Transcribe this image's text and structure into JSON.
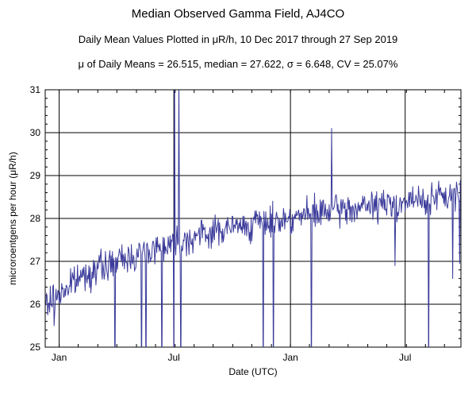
{
  "chart_data": {
    "type": "line",
    "title": "Median Observed Gamma Field, AJ4CO",
    "subtitle": "Daily Mean Values Plotted in μR/h, 10 Dec 2017 through 27 Sep 2019",
    "stats": "μ of Daily Means = 26.515,   median = 27.622,   σ = 6.648,   CV = 25.07%",
    "xlabel": "Date (UTC)",
    "ylabel": "microroentgens per hour (μR/h)",
    "ylim": [
      25,
      31
    ],
    "yticks": [
      25,
      26,
      27,
      28,
      29,
      30,
      31
    ],
    "xlim_days": [
      -22,
      634
    ],
    "xticks": [
      {
        "label": "Jan",
        "day": 0
      },
      {
        "label": "Jul",
        "day": 181
      },
      {
        "label": "Jan",
        "day": 365
      },
      {
        "label": "Jul",
        "day": 546
      }
    ],
    "grid": true,
    "series": [
      {
        "name": "Daily mean",
        "color": "#3b3b9b",
        "start_day": -21,
        "trend_anchors": [
          [
            -21,
            26.0
          ],
          [
            40,
            26.7
          ],
          [
            120,
            27.15
          ],
          [
            181,
            27.45
          ],
          [
            260,
            27.75
          ],
          [
            340,
            27.95
          ],
          [
            420,
            28.15
          ],
          [
            500,
            28.3
          ],
          [
            560,
            28.4
          ],
          [
            633,
            28.55
          ]
        ],
        "noise_amplitude": 0.27,
        "seed": 7,
        "spikes": [
          {
            "day": -18,
            "value": 25.75
          },
          {
            "day": -8,
            "value": 25.5
          },
          {
            "day": 88,
            "value": 24.0
          },
          {
            "day": 130,
            "value": 24.0
          },
          {
            "day": 137,
            "value": 24.0
          },
          {
            "day": 162,
            "value": 24.0
          },
          {
            "day": 181,
            "value": 24.0
          },
          {
            "day": 182,
            "value": 31.4
          },
          {
            "day": 189,
            "value": 31.4
          },
          {
            "day": 192,
            "value": 24.0
          },
          {
            "day": 322,
            "value": 24.0
          },
          {
            "day": 338,
            "value": 24.0
          },
          {
            "day": 398,
            "value": 24.0
          },
          {
            "day": 430,
            "value": 30.1
          },
          {
            "day": 530,
            "value": 26.9
          },
          {
            "day": 583,
            "value": 24.0
          },
          {
            "day": 621,
            "value": 26.6
          },
          {
            "day": 632,
            "value": 26.95
          }
        ]
      }
    ]
  }
}
